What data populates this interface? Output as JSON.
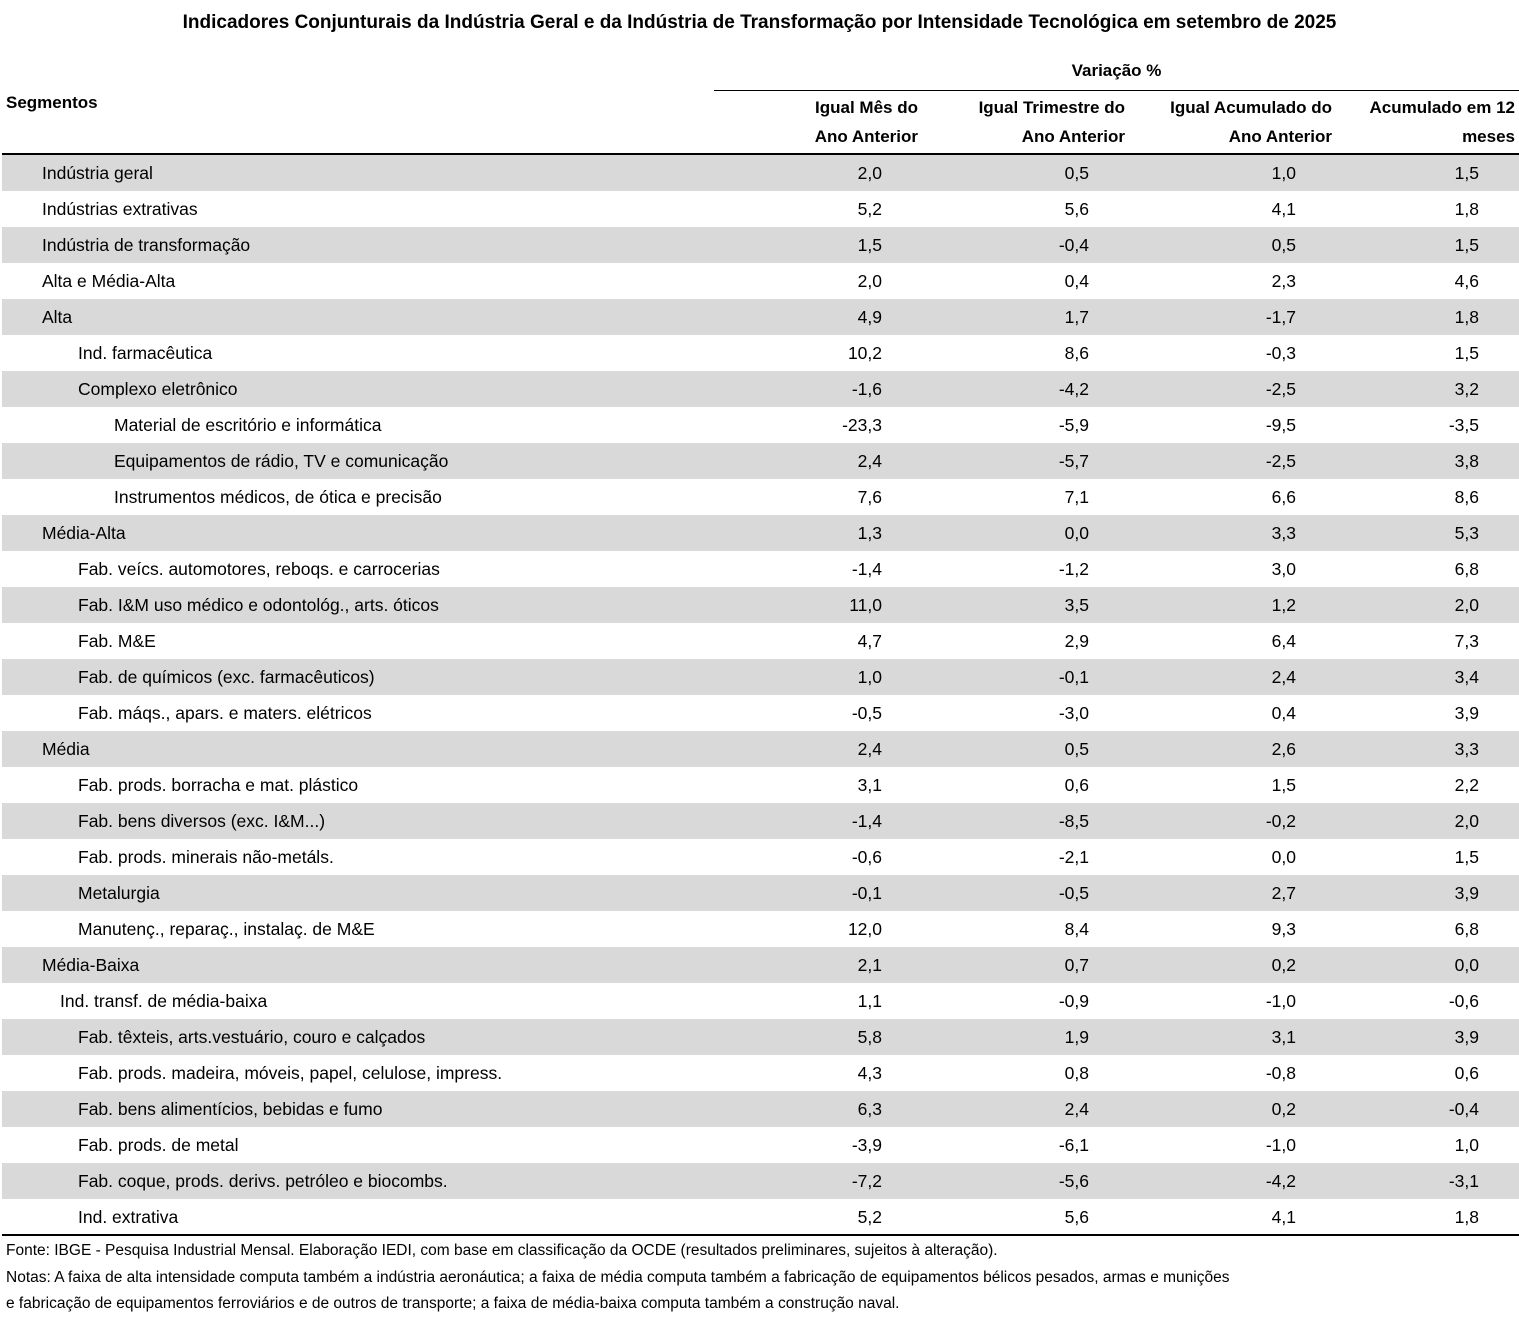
{
  "header": {
    "title": "Indicadores Conjunturais da Indústria Geral e da Indústria de Transformação por Intensidade Tecnológica em setembro de 2025"
  },
  "table": {
    "first_column": "Segmentos",
    "group_header": "Variação %",
    "columns": [
      [
        "Igual Mês do",
        "Ano Anterior"
      ],
      [
        "Igual Trimestre do",
        "Ano Anterior"
      ],
      [
        "Igual Acumulado do",
        "Ano Anterior"
      ],
      [
        "Acumulado em 12",
        "meses"
      ]
    ],
    "rows": [
      [
        "Indústria geral",
        "2,0",
        "0,5",
        "1,0",
        "1,5"
      ],
      [
        "Indústrias extrativas",
        "5,2",
        "5,6",
        "4,1",
        "1,8"
      ],
      [
        "Indústria de transformação",
        "1,5",
        "-0,4",
        "0,5",
        "1,5"
      ],
      [
        "Alta e Média-Alta",
        "2,0",
        "0,4",
        "2,3",
        "4,6"
      ],
      [
        "Alta",
        "4,9",
        "1,7",
        "-1,7",
        "1,8"
      ],
      [
        "Ind. farmacêutica",
        "10,2",
        "8,6",
        "-0,3",
        "1,5"
      ],
      [
        "Complexo eletrônico",
        "-1,6",
        "-4,2",
        "-2,5",
        "3,2"
      ],
      [
        "Material de escritório e informática",
        "-23,3",
        "-5,9",
        "-9,5",
        "-3,5"
      ],
      [
        "Equipamentos de rádio, TV e comunicação",
        "2,4",
        "-5,7",
        "-2,5",
        "3,8"
      ],
      [
        "Instrumentos médicos, de ótica e precisão",
        "7,6",
        "7,1",
        "6,6",
        "8,6"
      ],
      [
        "Média-Alta",
        "1,3",
        "0,0",
        "3,3",
        "5,3"
      ],
      [
        "Fab. veícs. automotores, reboqs. e carrocerias",
        "-1,4",
        "-1,2",
        "3,0",
        "6,8"
      ],
      [
        "Fab. I&M uso médico e odontológ., arts. óticos",
        "11,0",
        "3,5",
        "1,2",
        "2,0"
      ],
      [
        "Fab. M&E",
        "4,7",
        "2,9",
        "6,4",
        "7,3"
      ],
      [
        "Fab. de químicos (exc. farmacêuticos)",
        "1,0",
        "-0,1",
        "2,4",
        "3,4"
      ],
      [
        "Fab. máqs., apars. e maters. elétricos",
        "-0,5",
        "-3,0",
        "0,4",
        "3,9"
      ],
      [
        "Média",
        "2,4",
        "0,5",
        "2,6",
        "3,3"
      ],
      [
        "Fab. prods. borracha e mat. plástico",
        "3,1",
        "0,6",
        "1,5",
        "2,2"
      ],
      [
        "Fab. bens diversos (exc. I&M...)",
        "-1,4",
        "-8,5",
        "-0,2",
        "2,0"
      ],
      [
        "Fab. prods. minerais não-metáls.",
        "-0,6",
        "-2,1",
        "0,0",
        "1,5"
      ],
      [
        "Metalurgia",
        "-0,1",
        "-0,5",
        "2,7",
        "3,9"
      ],
      [
        "Manutenç., reparaç., instalaç. de M&E",
        "12,0",
        "8,4",
        "9,3",
        "6,8"
      ],
      [
        "Média-Baixa",
        "2,1",
        "0,7",
        "0,2",
        "0,0"
      ],
      [
        "Ind. transf. de média-baixa",
        "1,1",
        "-0,9",
        "-1,0",
        "-0,6"
      ],
      [
        "Fab. têxteis, arts.vestuário, couro e calçados",
        "5,8",
        "1,9",
        "3,1",
        "3,9"
      ],
      [
        "Fab. prods. madeira, móveis, papel, celulose, impress.",
        "4,3",
        "0,8",
        "-0,8",
        "0,6"
      ],
      [
        "Fab. bens alimentícios, bebidas e fumo",
        "6,3",
        "2,4",
        "0,2",
        "-0,4"
      ],
      [
        "Fab. prods. de metal",
        "-3,9",
        "-6,1",
        "-1,0",
        "1,0"
      ],
      [
        "Fab. coque, prods. derivs. petróleo e biocombs.",
        "-7,2",
        "-5,6",
        "-4,2",
        "-3,1"
      ],
      [
        "Ind. extrativa",
        "5,2",
        "5,6",
        "4,1",
        "1,8"
      ]
    ]
  },
  "footer": {
    "source": "Fonte: IBGE - Pesquisa Industrial Mensal. Elaboração IEDI, com base em classificação da OCDE (resultados preliminares, sujeitos à alteração).",
    "notes": [
      "Notas: A faixa de alta intensidade computa também a indústria aeronáutica; a faixa de média computa também a fabricação de equipamentos bélicos pesados, armas e munições",
      "e fabricação de equipamentos ferroviários e de outros de transporte; a faixa de média-baixa computa também a construção naval."
    ]
  }
}
